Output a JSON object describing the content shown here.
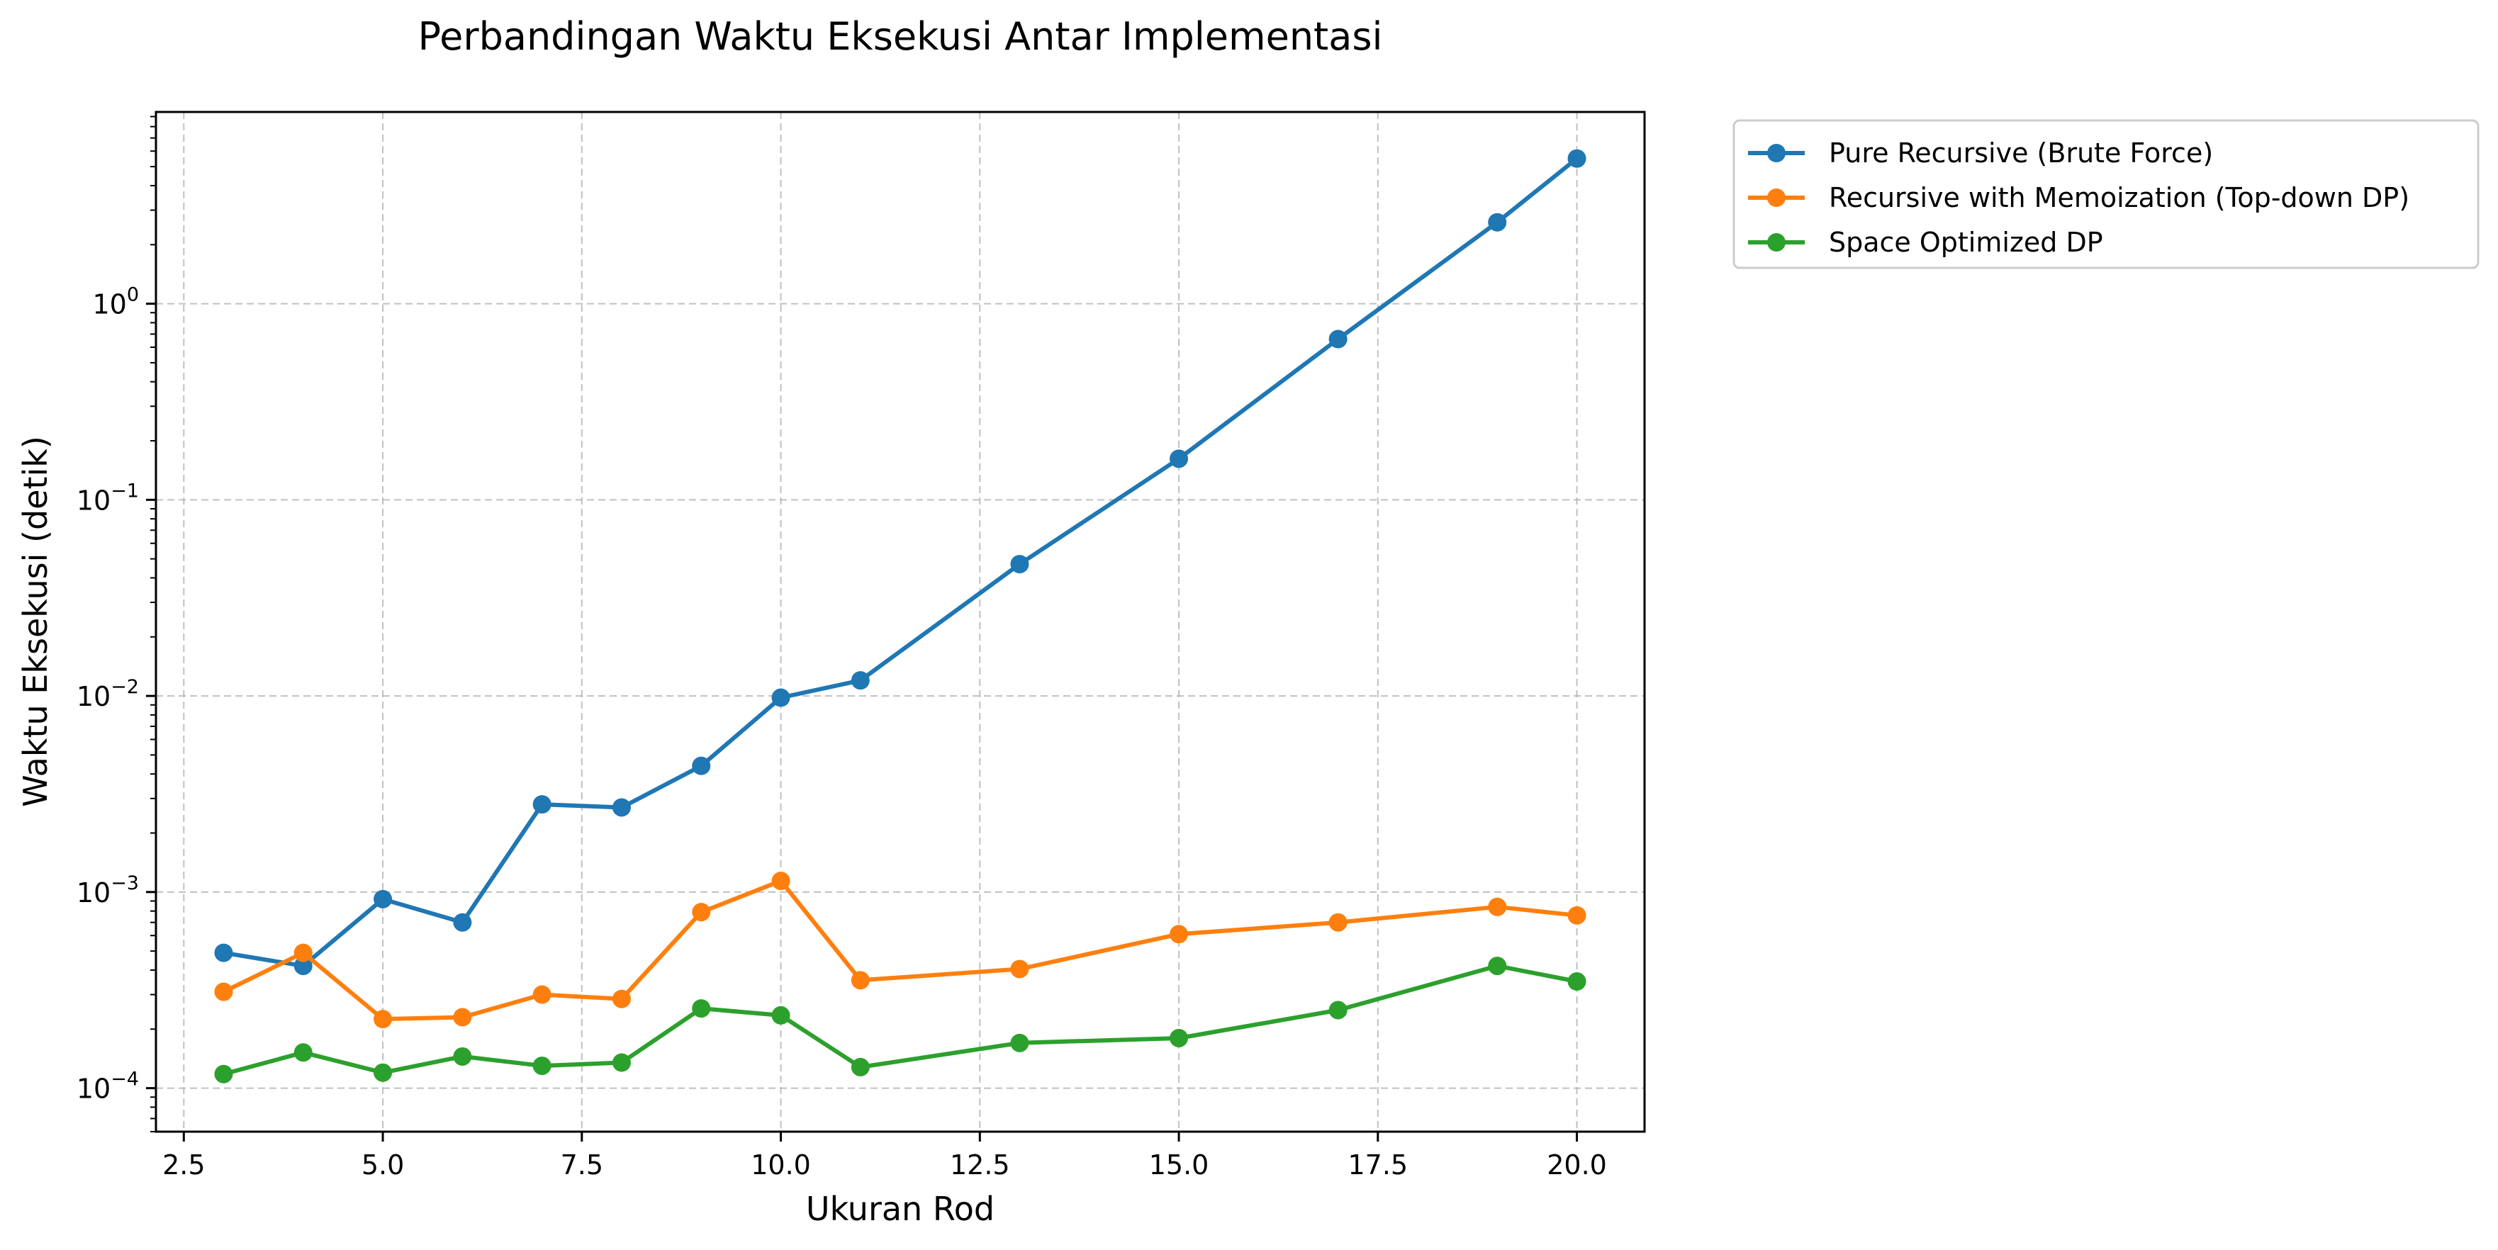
{
  "chart_data": {
    "type": "line",
    "title": "Perbandingan Waktu Eksekusi Antar Implementasi",
    "xlabel": "Ukuran Rod",
    "ylabel": "Waktu Eksekusi (detik)",
    "xlim": [
      2.15,
      20.85
    ],
    "ylim": [
      6e-05,
      9.5
    ],
    "yscale": "log",
    "grid": true,
    "legend_position": "outside-top-right",
    "x_ticks": [
      2.5,
      5.0,
      7.5,
      10.0,
      12.5,
      15.0,
      17.5,
      20.0
    ],
    "x_tick_labels": [
      "2.5",
      "5.0",
      "7.5",
      "10.0",
      "12.5",
      "15.0",
      "17.5",
      "20.0"
    ],
    "y_ticks": [
      0.0001,
      0.001,
      0.01,
      0.1,
      1
    ],
    "y_tick_exponents": [
      "−4",
      "−3",
      "−2",
      "−1",
      "0"
    ],
    "y_tick_base": "10",
    "x": [
      3,
      4,
      5,
      6,
      7,
      8,
      9,
      10,
      11,
      13,
      15,
      17,
      19,
      20
    ],
    "series": [
      {
        "name": "Pure Recursive (Brute Force)",
        "color": "#1f77b4",
        "values": [
          0.00049,
          0.00042,
          0.00092,
          0.0007,
          0.0028,
          0.0027,
          0.0044,
          0.0098,
          0.012,
          0.047,
          0.162,
          0.66,
          2.6,
          5.5
        ]
      },
      {
        "name": "Recursive with Memoization (Top-down DP)",
        "color": "#ff7f0e",
        "values": [
          0.00031,
          0.00049,
          0.000225,
          0.00023,
          0.0003,
          0.000285,
          0.00079,
          0.00114,
          0.000355,
          0.000405,
          0.00061,
          0.0007,
          0.00084,
          0.00076
        ]
      },
      {
        "name": "Space Optimized DP",
        "color": "#2ca02c",
        "values": [
          0.000118,
          0.000152,
          0.00012,
          0.000145,
          0.00013,
          0.000135,
          0.000255,
          0.000235,
          0.000128,
          0.00017,
          0.00018,
          0.00025,
          0.00042,
          0.00035
        ]
      }
    ]
  }
}
